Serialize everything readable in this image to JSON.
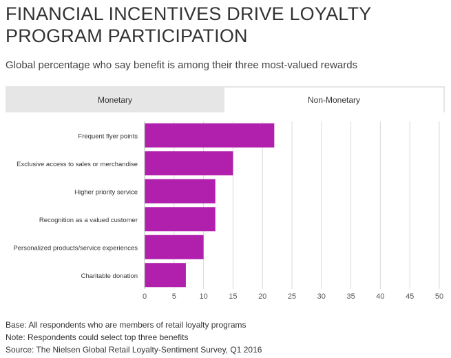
{
  "header": {
    "title": "FINANCIAL INCENTIVES DRIVE LOYALTY PROGRAM PARTICIPATION",
    "subtitle": "Global percentage who say benefit is among their three most-valued rewards"
  },
  "tabs": [
    {
      "label": "Monetary",
      "active": false
    },
    {
      "label": "Non-Monetary",
      "active": true
    }
  ],
  "chart_data": {
    "type": "bar",
    "orientation": "horizontal",
    "title": "Non-Monetary",
    "categories": [
      "Frequent flyer points",
      "Exclusive access to sales or merchandise",
      "Higher priority service",
      "Recognition as a valued customer",
      "Personalized products/service experiences",
      "Charitable donation"
    ],
    "values": [
      22,
      15,
      12,
      12,
      10,
      7
    ],
    "xlim": [
      0,
      50
    ],
    "xticks": [
      0,
      5,
      10,
      15,
      20,
      25,
      30,
      35,
      40,
      45,
      50
    ],
    "grid": true,
    "bar_color": "#b11fad"
  },
  "footnotes": {
    "base": "Base: All respondents who are members of retail loyalty programs",
    "note": "Note: Respondents could select top three benefits",
    "source": "Source: The Nielsen Global Retail Loyalty-Sentiment Survey, Q1 2016"
  }
}
